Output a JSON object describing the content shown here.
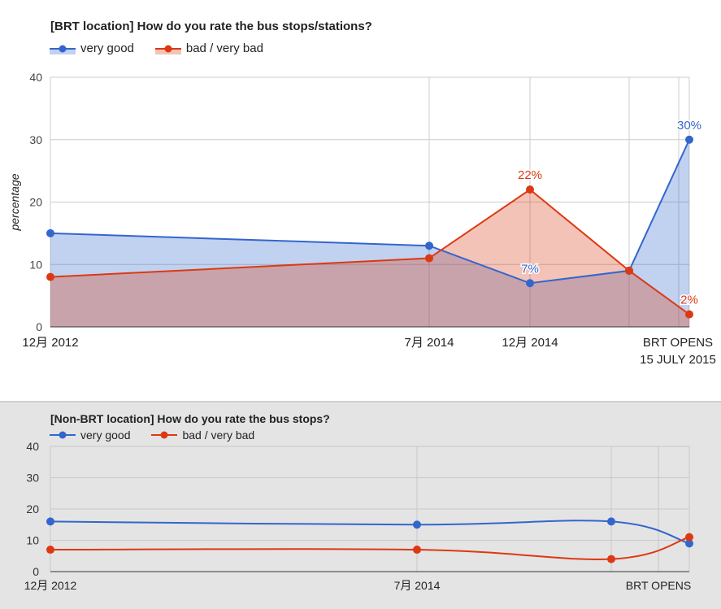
{
  "colors": {
    "very_good": "#3366cc",
    "bad": "#dc3912"
  },
  "chart_data": [
    {
      "type": "area",
      "title": "[BRT location] How do you rate the bus stops/stations?",
      "ylabel": "percentage",
      "xlabel": "",
      "ylim": [
        0,
        40
      ],
      "yticks": [
        0,
        10,
        20,
        30,
        40
      ],
      "grid": true,
      "legend_position": "top-left",
      "categories": [
        "12月 2012",
        "7月 2014",
        "12月 2014",
        "",
        "BRT OPENS 15 JULY 2015"
      ],
      "x_labels": [
        {
          "text": "12月 2012"
        },
        {
          "text": "7月 2014"
        },
        {
          "text": "12月 2014"
        },
        {
          "text": "BRT OPENS"
        },
        {
          "text": "15 JULY 2015"
        }
      ],
      "series": [
        {
          "name": "very good",
          "color": "#3366cc",
          "values": [
            15,
            13,
            7,
            9,
            30
          ],
          "data_labels": [
            "",
            "",
            "7%",
            "",
            "30%"
          ]
        },
        {
          "name": "bad / very bad",
          "color": "#dc3912",
          "values": [
            8,
            11,
            22,
            9,
            2
          ],
          "data_labels": [
            "",
            "",
            "22%",
            "",
            "2%"
          ]
        }
      ]
    },
    {
      "type": "line",
      "title": "[Non-BRT location] How do you rate the bus stops?",
      "xlabel": "",
      "ylabel": "",
      "ylim": [
        0,
        40
      ],
      "yticks": [
        0,
        10,
        20,
        30,
        40
      ],
      "grid": true,
      "legend_position": "top-left",
      "categories": [
        "12月 2012",
        "7月 2014",
        "",
        "BRT OPENS"
      ],
      "x_labels": [
        {
          "text": "12月 2012"
        },
        {
          "text": "7月 2014"
        },
        {
          "text": "BRT OPENS"
        }
      ],
      "series": [
        {
          "name": "very good",
          "color": "#3366cc",
          "values": [
            16,
            15,
            16,
            9
          ]
        },
        {
          "name": "bad / very bad",
          "color": "#dc3912",
          "values": [
            7,
            7,
            4,
            11
          ]
        }
      ]
    }
  ]
}
